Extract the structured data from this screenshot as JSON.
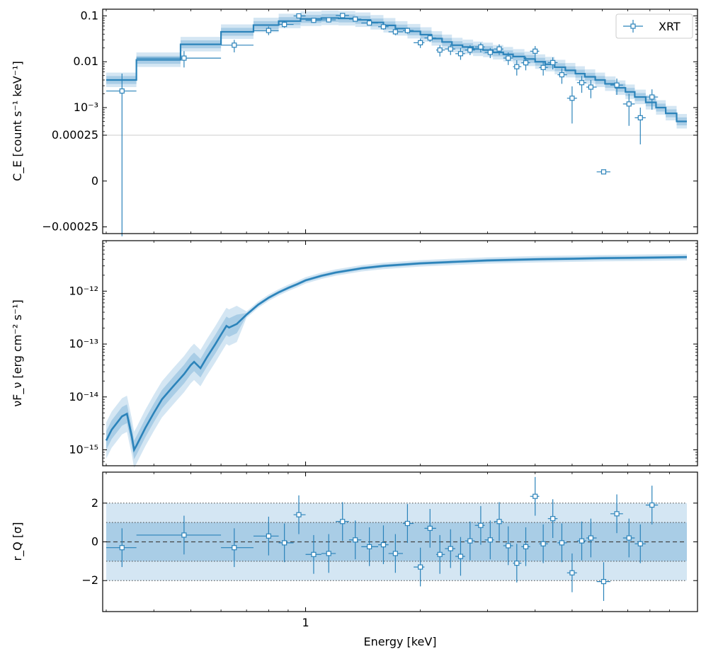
{
  "colors": {
    "model": "#2b83ba",
    "band_inner": "#a9cde6",
    "band_outer": "#d4e6f3",
    "data": "#2b83ba",
    "ref_line": "#444444"
  },
  "chart_data": [
    {
      "type": "step",
      "panel": "counts",
      "ylabel": "C_E [count s⁻¹ keV⁻¹]",
      "yscale": "symlog",
      "linthresh": 0.00025,
      "ylim": [
        -0.00035,
        0.14
      ],
      "xlim": [
        0.3,
        10.0
      ],
      "yticks": [
        {
          "value": 0.1,
          "label": "0.1"
        },
        {
          "value": 0.01,
          "label": "0.01"
        },
        {
          "value": 0.001,
          "label": "10⁻³"
        },
        {
          "value": 0.00025,
          "label": "0.00025"
        },
        {
          "value": 0.0,
          "label": "0"
        },
        {
          "value": -0.00025,
          "label": "−0.00025"
        }
      ],
      "legend": {
        "label": "XRT",
        "position": "top-right"
      },
      "model_steps": {
        "edges": [
          0.3,
          0.36,
          0.47,
          0.6,
          0.73,
          0.85,
          0.97,
          1.1,
          1.22,
          1.35,
          1.48,
          1.6,
          1.72,
          1.85,
          2.0,
          2.14,
          2.28,
          2.42,
          2.58,
          2.75,
          2.92,
          3.1,
          3.3,
          3.5,
          3.75,
          4.0,
          4.25,
          4.5,
          4.8,
          5.1,
          5.4,
          5.75,
          6.1,
          6.5,
          6.9,
          7.3,
          7.8,
          8.3,
          8.8,
          9.4,
          10.0
        ],
        "values": [
          0.004,
          0.011,
          0.024,
          0.045,
          0.063,
          0.077,
          0.086,
          0.09,
          0.088,
          0.082,
          0.072,
          0.062,
          0.053,
          0.046,
          0.039,
          0.032,
          0.027,
          0.023,
          0.021,
          0.019,
          0.018,
          0.016,
          0.0145,
          0.013,
          0.0115,
          0.01,
          0.0088,
          0.0076,
          0.0065,
          0.0055,
          0.0047,
          0.004,
          0.0033,
          0.0027,
          0.0022,
          0.0017,
          0.0013,
          0.001,
          0.00075,
          0.0005
        ]
      },
      "points": [
        {
          "x": 0.33,
          "xlo": 0.3,
          "xhi": 0.36,
          "y": 0.0023,
          "ylo": -0.0004,
          "yhi": 0.0055
        },
        {
          "x": 0.48,
          "xlo": 0.36,
          "xhi": 0.6,
          "y": 0.012,
          "ylo": 0.0075,
          "yhi": 0.017
        },
        {
          "x": 0.65,
          "xlo": 0.6,
          "xhi": 0.73,
          "y": 0.023,
          "ylo": 0.016,
          "yhi": 0.03
        },
        {
          "x": 0.8,
          "xlo": 0.73,
          "xhi": 0.85,
          "y": 0.048,
          "ylo": 0.038,
          "yhi": 0.059
        },
        {
          "x": 0.88,
          "xlo": 0.85,
          "xhi": 0.93,
          "y": 0.065,
          "ylo": 0.055,
          "yhi": 0.076
        },
        {
          "x": 0.96,
          "xlo": 0.93,
          "xhi": 1.0,
          "y": 0.1,
          "ylo": 0.089,
          "yhi": 0.111
        },
        {
          "x": 1.05,
          "xlo": 1.0,
          "xhi": 1.1,
          "y": 0.08,
          "ylo": 0.07,
          "yhi": 0.09
        },
        {
          "x": 1.15,
          "xlo": 1.1,
          "xhi": 1.2,
          "y": 0.082,
          "ylo": 0.072,
          "yhi": 0.092
        },
        {
          "x": 1.25,
          "xlo": 1.2,
          "xhi": 1.3,
          "y": 0.102,
          "ylo": 0.092,
          "yhi": 0.113
        },
        {
          "x": 1.35,
          "xlo": 1.3,
          "xhi": 1.4,
          "y": 0.085,
          "ylo": 0.076,
          "yhi": 0.094
        },
        {
          "x": 1.47,
          "xlo": 1.4,
          "xhi": 1.55,
          "y": 0.07,
          "ylo": 0.062,
          "yhi": 0.078
        },
        {
          "x": 1.6,
          "xlo": 1.55,
          "xhi": 1.65,
          "y": 0.058,
          "ylo": 0.05,
          "yhi": 0.066
        },
        {
          "x": 1.72,
          "xlo": 1.65,
          "xhi": 1.8,
          "y": 0.045,
          "ylo": 0.038,
          "yhi": 0.052
        },
        {
          "x": 1.85,
          "xlo": 1.8,
          "xhi": 1.92,
          "y": 0.048,
          "ylo": 0.041,
          "yhi": 0.055
        },
        {
          "x": 2.0,
          "xlo": 1.92,
          "xhi": 2.05,
          "y": 0.026,
          "ylo": 0.02,
          "yhi": 0.032
        },
        {
          "x": 2.12,
          "xlo": 2.05,
          "xhi": 2.2,
          "y": 0.033,
          "ylo": 0.027,
          "yhi": 0.039
        },
        {
          "x": 2.25,
          "xlo": 2.2,
          "xhi": 2.32,
          "y": 0.018,
          "ylo": 0.013,
          "yhi": 0.023
        },
        {
          "x": 2.4,
          "xlo": 2.32,
          "xhi": 2.47,
          "y": 0.019,
          "ylo": 0.014,
          "yhi": 0.024
        },
        {
          "x": 2.55,
          "xlo": 2.47,
          "xhi": 2.62,
          "y": 0.015,
          "ylo": 0.011,
          "yhi": 0.02
        },
        {
          "x": 2.7,
          "xlo": 2.62,
          "xhi": 2.78,
          "y": 0.018,
          "ylo": 0.014,
          "yhi": 0.023
        },
        {
          "x": 2.88,
          "xlo": 2.78,
          "xhi": 2.95,
          "y": 0.021,
          "ylo": 0.016,
          "yhi": 0.026
        },
        {
          "x": 3.05,
          "xlo": 2.95,
          "xhi": 3.12,
          "y": 0.016,
          "ylo": 0.012,
          "yhi": 0.02
        },
        {
          "x": 3.22,
          "xlo": 3.12,
          "xhi": 3.3,
          "y": 0.019,
          "ylo": 0.014,
          "yhi": 0.024
        },
        {
          "x": 3.4,
          "xlo": 3.3,
          "xhi": 3.5,
          "y": 0.012,
          "ylo": 0.0085,
          "yhi": 0.016
        },
        {
          "x": 3.58,
          "xlo": 3.5,
          "xhi": 3.68,
          "y": 0.0078,
          "ylo": 0.005,
          "yhi": 0.0108
        },
        {
          "x": 3.78,
          "xlo": 3.68,
          "xhi": 3.88,
          "y": 0.0095,
          "ylo": 0.0065,
          "yhi": 0.0128
        },
        {
          "x": 4.0,
          "xlo": 3.88,
          "xhi": 4.1,
          "y": 0.017,
          "ylo": 0.012,
          "yhi": 0.022
        },
        {
          "x": 4.2,
          "xlo": 4.1,
          "xhi": 4.32,
          "y": 0.0075,
          "ylo": 0.005,
          "yhi": 0.01
        },
        {
          "x": 4.45,
          "xlo": 4.32,
          "xhi": 4.58,
          "y": 0.0096,
          "ylo": 0.0068,
          "yhi": 0.0125
        },
        {
          "x": 4.7,
          "xlo": 4.58,
          "xhi": 4.85,
          "y": 0.0052,
          "ylo": 0.0033,
          "yhi": 0.0072
        },
        {
          "x": 5.0,
          "xlo": 4.85,
          "xhi": 5.15,
          "y": 0.0016,
          "ylo": 0.00045,
          "yhi": 0.0029
        },
        {
          "x": 5.3,
          "xlo": 5.15,
          "xhi": 5.45,
          "y": 0.0035,
          "ylo": 0.0021,
          "yhi": 0.0049
        },
        {
          "x": 5.6,
          "xlo": 5.45,
          "xhi": 5.8,
          "y": 0.0028,
          "ylo": 0.0016,
          "yhi": 0.004
        },
        {
          "x": 6.05,
          "xlo": 5.8,
          "xhi": 6.3,
          "y": 5e-05,
          "ylo": 5e-05,
          "yhi": 5e-05
        },
        {
          "x": 6.55,
          "xlo": 6.3,
          "xhi": 6.8,
          "y": 0.0031,
          "ylo": 0.0019,
          "yhi": 0.0043
        },
        {
          "x": 7.05,
          "xlo": 6.8,
          "xhi": 7.3,
          "y": 0.0012,
          "ylo": 0.0004,
          "yhi": 0.002
        },
        {
          "x": 7.55,
          "xlo": 7.3,
          "xhi": 7.8,
          "y": 0.0006,
          "ylo": 0.0002,
          "yhi": 0.001
        },
        {
          "x": 8.1,
          "xlo": 7.8,
          "xhi": 8.4,
          "y": 0.0017,
          "ylo": 0.0009,
          "yhi": 0.0025
        }
      ]
    },
    {
      "type": "line",
      "panel": "nuFnu",
      "ylabel": "νF_ν [erg cm⁻² s⁻¹]",
      "yscale": "log",
      "ylim": [
        5e-16,
        9e-12
      ],
      "xlim": [
        0.3,
        10.0
      ],
      "yticks": [
        {
          "value": 1e-12,
          "label": "10⁻¹²"
        },
        {
          "value": 1e-13,
          "label": "10⁻¹³"
        },
        {
          "value": 1e-14,
          "label": "10⁻¹⁴"
        },
        {
          "value": 1e-15,
          "label": "10⁻¹⁵"
        }
      ],
      "x": [
        0.3,
        0.31,
        0.33,
        0.34,
        0.35,
        0.355,
        0.36,
        0.38,
        0.4,
        0.42,
        0.45,
        0.48,
        0.5,
        0.51,
        0.53,
        0.55,
        0.58,
        0.6,
        0.62,
        0.63,
        0.66,
        0.7,
        0.75,
        0.8,
        0.85,
        0.9,
        0.95,
        1.0,
        1.1,
        1.2,
        1.4,
        1.6,
        2.0,
        2.5,
        3.0,
        4.0,
        5.0,
        6.0,
        8.0,
        10.0
      ],
      "y": [
        1.5e-15,
        2.4e-15,
        4.3e-15,
        4.8e-15,
        1.8e-15,
        1e-15,
        1.2e-15,
        2.6e-15,
        5e-15,
        9e-15,
        1.6e-14,
        2.7e-14,
        4e-14,
        4.6e-14,
        3.5e-14,
        5.5e-14,
        1e-13,
        1.5e-13,
        2.2e-13,
        2.05e-13,
        2.4e-13,
        3.6e-13,
        5.5e-13,
        7.5e-13,
        9.5e-13,
        1.15e-12,
        1.35e-12,
        1.6e-12,
        1.95e-12,
        2.25e-12,
        2.7e-12,
        3e-12,
        3.35e-12,
        3.6e-12,
        3.8e-12,
        4e-12,
        4.1e-12,
        4.2e-12,
        4.3e-12,
        4.4e-12
      ]
    },
    {
      "type": "scatter",
      "panel": "residuals",
      "ylabel": "r_Q [σ]",
      "xlabel": "Energy [keV]",
      "xlim": [
        0.3,
        10.0
      ],
      "ylim": [
        -3.6,
        3.6
      ],
      "xscale": "log",
      "xticks": [
        {
          "value": 1.0,
          "label": "1"
        }
      ],
      "yticks": [
        {
          "value": 2,
          "label": "2"
        },
        {
          "value": 0,
          "label": "0"
        },
        {
          "value": -2,
          "label": "−2"
        }
      ],
      "bands": [
        {
          "lo": -1,
          "hi": 1,
          "label": "1σ"
        },
        {
          "lo": -2,
          "hi": 2,
          "label": "2σ"
        }
      ],
      "points": [
        {
          "x": 0.33,
          "xlo": 0.3,
          "xhi": 0.36,
          "r": -0.3
        },
        {
          "x": 0.48,
          "xlo": 0.36,
          "xhi": 0.6,
          "r": 0.35
        },
        {
          "x": 0.65,
          "xlo": 0.6,
          "xhi": 0.73,
          "r": -0.3
        },
        {
          "x": 0.8,
          "xlo": 0.73,
          "xhi": 0.85,
          "r": 0.3
        },
        {
          "x": 0.88,
          "xlo": 0.85,
          "xhi": 0.93,
          "r": -0.05
        },
        {
          "x": 0.96,
          "xlo": 0.93,
          "xhi": 1.0,
          "r": 1.4
        },
        {
          "x": 1.05,
          "xlo": 1.0,
          "xhi": 1.1,
          "r": -0.65
        },
        {
          "x": 1.15,
          "xlo": 1.1,
          "xhi": 1.2,
          "r": -0.6
        },
        {
          "x": 1.25,
          "xlo": 1.2,
          "xhi": 1.3,
          "r": 1.05
        },
        {
          "x": 1.35,
          "xlo": 1.3,
          "xhi": 1.4,
          "r": 0.1
        },
        {
          "x": 1.47,
          "xlo": 1.4,
          "xhi": 1.55,
          "r": -0.25
        },
        {
          "x": 1.6,
          "xlo": 1.55,
          "xhi": 1.65,
          "r": -0.15
        },
        {
          "x": 1.72,
          "xlo": 1.65,
          "xhi": 1.8,
          "r": -0.6
        },
        {
          "x": 1.85,
          "xlo": 1.8,
          "xhi": 1.92,
          "r": 0.95
        },
        {
          "x": 2.0,
          "xlo": 1.92,
          "xhi": 2.05,
          "r": -1.3
        },
        {
          "x": 2.12,
          "xlo": 2.05,
          "xhi": 2.2,
          "r": 0.7
        },
        {
          "x": 2.25,
          "xlo": 2.2,
          "xhi": 2.32,
          "r": -0.65
        },
        {
          "x": 2.4,
          "xlo": 2.32,
          "xhi": 2.47,
          "r": -0.35
        },
        {
          "x": 2.55,
          "xlo": 2.47,
          "xhi": 2.62,
          "r": -0.75
        },
        {
          "x": 2.7,
          "xlo": 2.62,
          "xhi": 2.78,
          "r": 0.05
        },
        {
          "x": 2.88,
          "xlo": 2.78,
          "xhi": 2.95,
          "r": 0.85
        },
        {
          "x": 3.05,
          "xlo": 2.95,
          "xhi": 3.12,
          "r": 0.1
        },
        {
          "x": 3.22,
          "xlo": 3.12,
          "xhi": 3.3,
          "r": 1.05
        },
        {
          "x": 3.4,
          "xlo": 3.3,
          "xhi": 3.5,
          "r": -0.2
        },
        {
          "x": 3.58,
          "xlo": 3.5,
          "xhi": 3.68,
          "r": -1.1
        },
        {
          "x": 3.78,
          "xlo": 3.68,
          "xhi": 3.88,
          "r": -0.25
        },
        {
          "x": 4.0,
          "xlo": 3.88,
          "xhi": 4.1,
          "r": 2.35
        },
        {
          "x": 4.2,
          "xlo": 4.1,
          "xhi": 4.32,
          "r": -0.1
        },
        {
          "x": 4.45,
          "xlo": 4.32,
          "xhi": 4.58,
          "r": 1.2
        },
        {
          "x": 4.7,
          "xlo": 4.58,
          "xhi": 4.85,
          "r": -0.05
        },
        {
          "x": 5.0,
          "xlo": 4.85,
          "xhi": 5.15,
          "r": -1.6
        },
        {
          "x": 5.3,
          "xlo": 5.15,
          "xhi": 5.45,
          "r": 0.05
        },
        {
          "x": 5.6,
          "xlo": 5.45,
          "xhi": 5.8,
          "r": 0.2
        },
        {
          "x": 6.05,
          "xlo": 5.8,
          "xhi": 6.3,
          "r": -2.05
        },
        {
          "x": 6.55,
          "xlo": 6.3,
          "xhi": 6.8,
          "r": 1.45
        },
        {
          "x": 7.05,
          "xlo": 6.8,
          "xhi": 7.3,
          "r": 0.2
        },
        {
          "x": 7.55,
          "xlo": 7.3,
          "xhi": 7.8,
          "r": -0.1
        },
        {
          "x": 8.1,
          "xlo": 7.8,
          "xhi": 8.4,
          "r": 1.9
        }
      ]
    }
  ]
}
